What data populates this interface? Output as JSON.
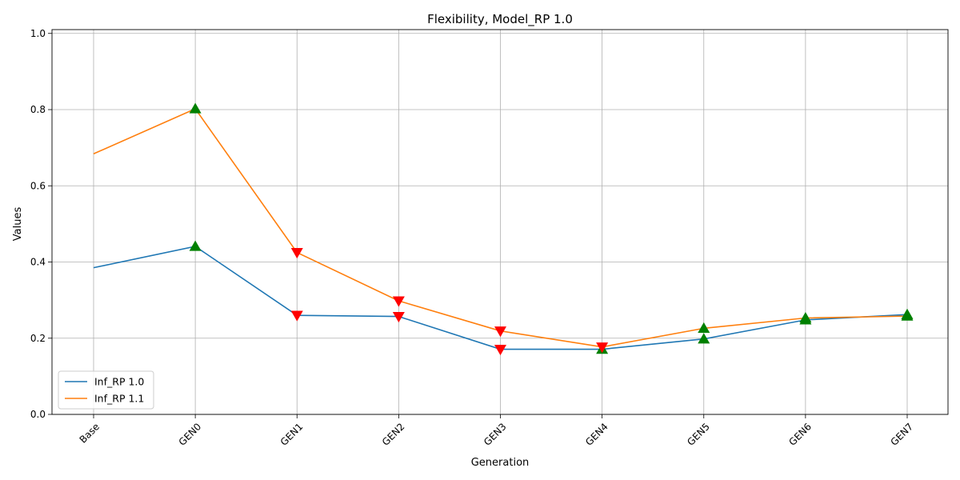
{
  "chart_data": {
    "type": "line",
    "title": "Flexibility, Model_RP 1.0",
    "xlabel": "Generation",
    "ylabel": "Values",
    "categories": [
      "Base",
      "GEN0",
      "GEN1",
      "GEN2",
      "GEN3",
      "GEN4",
      "GEN5",
      "GEN6",
      "GEN7"
    ],
    "ylim": [
      0,
      1.01
    ],
    "yticks": [
      0.0,
      0.2,
      0.4,
      0.6,
      0.8,
      1.0
    ],
    "ytick_labels": [
      "0.0",
      "0.2",
      "0.4",
      "0.6",
      "0.8",
      "1.0"
    ],
    "grid": true,
    "legend_position": "lower-left",
    "series": [
      {
        "name": "Inf_RP 1.0",
        "color": "#1f77b4",
        "values": [
          0.385,
          0.441,
          0.26,
          0.257,
          0.171,
          0.171,
          0.198,
          0.248,
          0.262
        ],
        "markers": [
          null,
          "up",
          "down",
          "down",
          "down",
          "up",
          "up",
          "up",
          "up"
        ]
      },
      {
        "name": "Inf_RP 1.1",
        "color": "#ff7f0e",
        "values": [
          0.684,
          0.802,
          0.425,
          0.298,
          0.219,
          0.177,
          0.226,
          0.253,
          0.258
        ],
        "markers": [
          null,
          "up",
          "down",
          "down",
          "down",
          "down",
          "up",
          "up",
          "up"
        ]
      }
    ],
    "marker_colors": {
      "up": "#008000",
      "down": "#ff0000"
    }
  }
}
